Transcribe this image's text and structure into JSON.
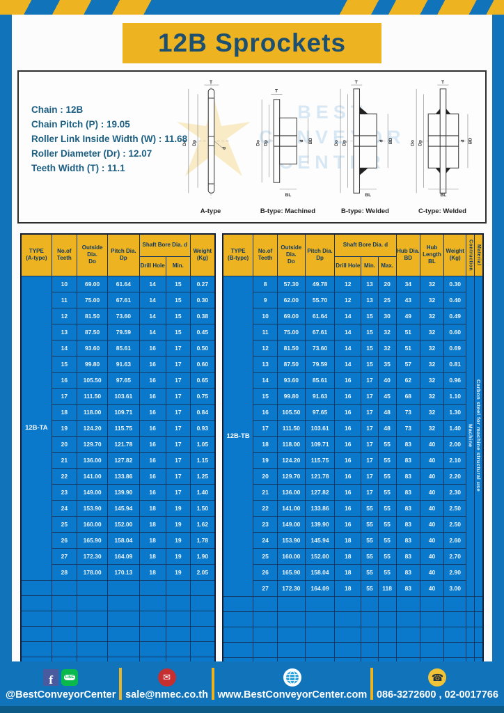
{
  "title": "12B Sprockets",
  "colors": {
    "page_blue": "#1173b9",
    "gold": "#eeb321",
    "table_blue": "#0b79cb",
    "grid_navy": "#14365f",
    "title_navy": "#1d4f70",
    "mail_red": "#c62f2f",
    "line_green": "#09b94e",
    "phone_yellow": "#f0c237"
  },
  "specs": [
    "Chain  :  12B",
    "Chain Pitch (P)  :  19.05",
    "Roller Link Inside Width (W) : 11.68",
    "Roller Diameter (Dr)  : 12.07",
    "Teeth Width (T)  :  11.1"
  ],
  "watermark": {
    "lines": [
      "BEST",
      "CONVEYOR",
      "CENTER"
    ]
  },
  "diagrams": [
    {
      "label": "A-type",
      "dims": {
        "t": "T",
        "do": "Do",
        "dp": "Dp",
        "d": "d"
      }
    },
    {
      "label": "B-type: Machined",
      "dims": {
        "t": "T",
        "do": "Do",
        "dp": "Dp",
        "d": "d",
        "bd": "BD",
        "bl": "BL"
      }
    },
    {
      "label": "B-type: Welded",
      "dims": {
        "t": "T",
        "do": "Do",
        "dp": "Dp",
        "d": "d",
        "bd": "BD",
        "bl": "BL"
      }
    },
    {
      "label": "C-type: Welded",
      "dims": {
        "t": "T",
        "do": "Do",
        "dp": "Dp",
        "d": "d",
        "bd": "BD",
        "bl": "BL"
      }
    }
  ],
  "table_a": {
    "type_label": "12B-TA",
    "headers": {
      "type": [
        "TYPE",
        "(A-type)"
      ],
      "teeth": [
        "No.of",
        "Teeth"
      ],
      "outside": [
        "Outside",
        "Dia.",
        "Do"
      ],
      "pitch": [
        "Pitch Dia.",
        "Dp"
      ],
      "shaft_bore": "Shaft Bore Dia. d",
      "drill": "Drill Hole",
      "min": "Min.",
      "weight": [
        "Weight",
        "(Kg)"
      ]
    },
    "rows": [
      [
        "10",
        "69.00",
        "61.64",
        "14",
        "15",
        "0.27"
      ],
      [
        "11",
        "75.00",
        "67.61",
        "14",
        "15",
        "0.30"
      ],
      [
        "12",
        "81.50",
        "73.60",
        "14",
        "15",
        "0.38"
      ],
      [
        "13",
        "87.50",
        "79.59",
        "14",
        "15",
        "0.45"
      ],
      [
        "14",
        "93.60",
        "85.61",
        "16",
        "17",
        "0.50"
      ],
      [
        "15",
        "99.80",
        "91.63",
        "16",
        "17",
        "0.60"
      ],
      [
        "16",
        "105.50",
        "97.65",
        "16",
        "17",
        "0.65"
      ],
      [
        "17",
        "111.50",
        "103.61",
        "16",
        "17",
        "0.75"
      ],
      [
        "18",
        "118.00",
        "109.71",
        "16",
        "17",
        "0.84"
      ],
      [
        "19",
        "124.20",
        "115.75",
        "16",
        "17",
        "0.93"
      ],
      [
        "20",
        "129.70",
        "121.78",
        "16",
        "17",
        "1.05"
      ],
      [
        "21",
        "136.00",
        "127.82",
        "16",
        "17",
        "1.15"
      ],
      [
        "22",
        "141.00",
        "133.86",
        "16",
        "17",
        "1.25"
      ],
      [
        "23",
        "149.00",
        "139.90",
        "16",
        "17",
        "1.40"
      ],
      [
        "24",
        "153.90",
        "145.94",
        "18",
        "19",
        "1.50"
      ],
      [
        "25",
        "160.00",
        "152.00",
        "18",
        "19",
        "1.62"
      ],
      [
        "26",
        "165.90",
        "158.04",
        "18",
        "19",
        "1.78"
      ],
      [
        "27",
        "172.30",
        "164.09",
        "18",
        "19",
        "1.90"
      ],
      [
        "28",
        "178.00",
        "170.13",
        "18",
        "19",
        "2.05"
      ]
    ],
    "empty_rows": 6
  },
  "table_b": {
    "type_label": "12B-TB",
    "headers": {
      "type": [
        "TYPE",
        "(B-type)"
      ],
      "teeth": [
        "No.of",
        "Teeth"
      ],
      "outside": [
        "Outside",
        "Dia.",
        "Do"
      ],
      "pitch": [
        "Pitch Dia.",
        "Dp"
      ],
      "shaft_bore": "Shaft Bore Dia. d",
      "drill": "Drill Hole",
      "min": "Min.",
      "max": "Max.",
      "hub_dia": [
        "Hub Dia.",
        "BD"
      ],
      "hub_len": [
        "Hub",
        "Length",
        "BL"
      ],
      "weight": [
        "Weight",
        "(Kg)"
      ],
      "construction": "Contruction",
      "material": "Material"
    },
    "construction_value": "Machine",
    "material_value": "Carbon steel for machine structural use",
    "rows": [
      [
        "8",
        "57.30",
        "49.78",
        "12",
        "13",
        "20",
        "34",
        "32",
        "0.30"
      ],
      [
        "9",
        "62.00",
        "55.70",
        "12",
        "13",
        "25",
        "43",
        "32",
        "0.40"
      ],
      [
        "10",
        "69.00",
        "61.64",
        "14",
        "15",
        "30",
        "49",
        "32",
        "0.49"
      ],
      [
        "11",
        "75.00",
        "67.61",
        "14",
        "15",
        "32",
        "51",
        "32",
        "0.60"
      ],
      [
        "12",
        "81.50",
        "73.60",
        "14",
        "15",
        "32",
        "51",
        "32",
        "0.69"
      ],
      [
        "13",
        "87.50",
        "79.59",
        "14",
        "15",
        "35",
        "57",
        "32",
        "0.81"
      ],
      [
        "14",
        "93.60",
        "85.61",
        "16",
        "17",
        "40",
        "62",
        "32",
        "0.96"
      ],
      [
        "15",
        "99.80",
        "91.63",
        "16",
        "17",
        "45",
        "68",
        "32",
        "1.10"
      ],
      [
        "16",
        "105.50",
        "97.65",
        "16",
        "17",
        "48",
        "73",
        "32",
        "1.30"
      ],
      [
        "17",
        "111.50",
        "103.61",
        "16",
        "17",
        "48",
        "73",
        "32",
        "1.40"
      ],
      [
        "18",
        "118.00",
        "109.71",
        "16",
        "17",
        "55",
        "83",
        "40",
        "2.00"
      ],
      [
        "19",
        "124.20",
        "115.75",
        "16",
        "17",
        "55",
        "83",
        "40",
        "2.10"
      ],
      [
        "20",
        "129.70",
        "121.78",
        "16",
        "17",
        "55",
        "83",
        "40",
        "2.20"
      ],
      [
        "21",
        "136.00",
        "127.82",
        "16",
        "17",
        "55",
        "83",
        "40",
        "2.30"
      ],
      [
        "22",
        "141.00",
        "133.86",
        "16",
        "55",
        "55",
        "83",
        "40",
        "2.50"
      ],
      [
        "23",
        "149.00",
        "139.90",
        "16",
        "55",
        "55",
        "83",
        "40",
        "2.50"
      ],
      [
        "24",
        "153.90",
        "145.94",
        "18",
        "55",
        "55",
        "83",
        "40",
        "2.60"
      ],
      [
        "25",
        "160.00",
        "152.00",
        "18",
        "55",
        "55",
        "83",
        "40",
        "2.70"
      ],
      [
        "26",
        "165.90",
        "158.04",
        "18",
        "55",
        "55",
        "83",
        "40",
        "2.90"
      ],
      [
        "27",
        "172.30",
        "164.09",
        "18",
        "55",
        "118",
        "83",
        "40",
        "3.00"
      ]
    ],
    "empty_rows": 5
  },
  "footer": {
    "social_handle": "@BestConveyorCenter",
    "facebook_f": "f",
    "line_label": "LINE",
    "email": "sale@nmec.co.th",
    "website": "www.BestConveyorCenter.com",
    "phones": "086-3272600 , 02-0017766"
  }
}
